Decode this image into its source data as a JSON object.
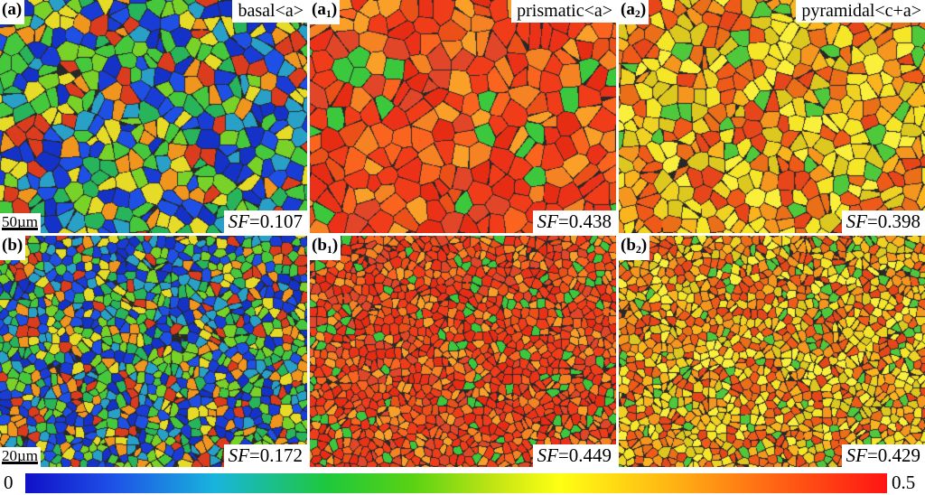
{
  "panels": [
    {
      "id": "a",
      "tag_main": "(a",
      "tag_sub": "",
      "mode": "basal<a>",
      "sf_label": "SF",
      "sf_value": "=0.107",
      "scale_label": "50µm",
      "palette": "basal"
    },
    {
      "id": "a1",
      "tag_main": "(a",
      "tag_sub": "1",
      "mode": "prismatic<a>",
      "sf_label": "SF",
      "sf_value": "=0.438",
      "scale_label": "",
      "palette": "prismatic"
    },
    {
      "id": "a2",
      "tag_main": "(a",
      "tag_sub": "2",
      "mode": "pyramidal<c+a>",
      "sf_label": "SF",
      "sf_value": "=0.398",
      "scale_label": "",
      "palette": "pyramidal"
    },
    {
      "id": "b",
      "tag_main": "(b",
      "tag_sub": "",
      "mode": "",
      "sf_label": "SF",
      "sf_value": "=0.172",
      "scale_label": "20µm",
      "palette": "basal"
    },
    {
      "id": "b1",
      "tag_main": "(b",
      "tag_sub": "1",
      "mode": "",
      "sf_label": "SF",
      "sf_value": "=0.449",
      "scale_label": "",
      "palette": "prismatic"
    },
    {
      "id": "b2",
      "tag_main": "(b",
      "tag_sub": "2",
      "mode": "",
      "sf_label": "SF",
      "sf_value": "=0.429",
      "scale_label": "",
      "palette": "pyramidal"
    }
  ],
  "tag_close": ")",
  "colorbar": {
    "min_label": "0",
    "max_label": "0.5"
  }
}
